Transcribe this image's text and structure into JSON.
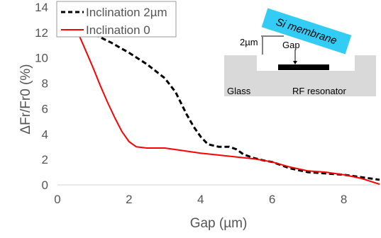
{
  "chart_data": {
    "type": "line",
    "title": "",
    "xlabel": "Gap (µm)",
    "ylabel": "ΔFr/Fr0 (%)",
    "xlim": [
      0,
      9
    ],
    "ylim": [
      0,
      14
    ],
    "x_ticks": [
      0,
      2,
      4,
      6,
      8
    ],
    "y_ticks": [
      0,
      2,
      4,
      6,
      8,
      10,
      12,
      14
    ],
    "grid": false,
    "legend_position": "top-left",
    "series": [
      {
        "name": "Inclination 2µm",
        "color": "#000000",
        "dash": "dashed",
        "x": [
          0.6,
          1.0,
          1.5,
          2.0,
          2.5,
          3.0,
          3.3,
          3.6,
          3.8,
          4.0,
          4.2,
          4.5,
          4.8,
          5.0,
          5.2,
          5.5,
          5.8,
          6.0,
          6.5,
          7.0,
          7.5,
          8.0,
          8.5,
          9.0
        ],
        "y": [
          12.0,
          11.9,
          11.2,
          10.4,
          9.5,
          8.4,
          7.3,
          5.6,
          4.6,
          3.8,
          3.2,
          3.0,
          3.0,
          2.8,
          2.4,
          2.1,
          1.9,
          1.8,
          1.3,
          1.0,
          0.9,
          0.8,
          0.6,
          0.4
        ]
      },
      {
        "name": "Inclination 0",
        "color": "#ff0000",
        "dash": "solid",
        "x": [
          0.6,
          0.8,
          1.0,
          1.2,
          1.4,
          1.6,
          1.8,
          2.0,
          2.2,
          2.5,
          3.0,
          3.5,
          4.0,
          4.5,
          5.0,
          5.5,
          6.0,
          6.5,
          7.0,
          7.5,
          8.0,
          8.5,
          9.0
        ],
        "y": [
          11.8,
          10.5,
          9.2,
          7.8,
          6.5,
          5.3,
          4.2,
          3.4,
          3.0,
          2.9,
          2.9,
          2.7,
          2.5,
          2.35,
          2.2,
          2.05,
          1.8,
          1.4,
          1.1,
          1.0,
          0.8,
          0.5,
          0.05
        ]
      }
    ]
  },
  "inset": {
    "membrane_label": "Si membrane",
    "inclination_label": "2µm",
    "gap_label": "Gap",
    "glass_label": "Glass",
    "resonator_label": "RF resonator",
    "membrane_color": "#33ccf5",
    "glass_color": "#d9d9d9",
    "resonator_color": "#000000"
  }
}
